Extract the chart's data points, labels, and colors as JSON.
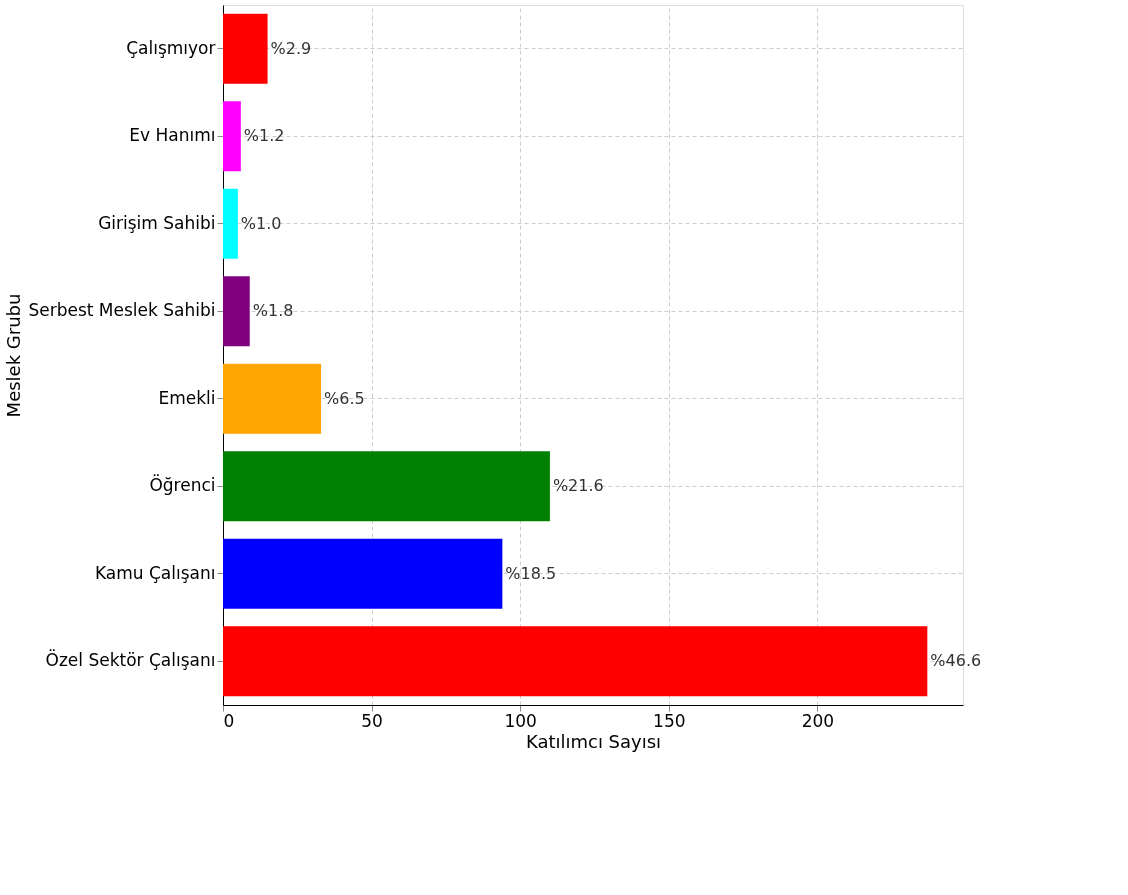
{
  "chart_data": {
    "type": "bar",
    "orientation": "horizontal",
    "xlabel": "Katılımcı Sayısı",
    "ylabel": "Meslek Grubu",
    "categories": [
      "Çalışmıyor",
      "Ev Hanımı",
      "Girişim Sahibi",
      "Serbest Meslek Sahibi",
      "Emekli",
      "Öğrenci",
      "Kamu Çalışanı",
      "Özel Sektör Çalışanı"
    ],
    "values": [
      15,
      6,
      5,
      9,
      33,
      110,
      94,
      237
    ],
    "colors": [
      "#ff0000",
      "#ff00ff",
      "#00ffff",
      "#800080",
      "#ffa500",
      "#008000",
      "#0000ff",
      "#ff0000"
    ],
    "annotations": [
      {
        "text": "%2.9",
        "x": 15,
        "y": "Çalışmıyor"
      },
      {
        "text": "%1.2",
        "x": 6,
        "y": "Ev Hanımı"
      },
      {
        "text": "%1.0",
        "x": 5,
        "y": "Girişim Sahibi"
      },
      {
        "text": "%1.8",
        "x": 9,
        "y": "Serbest Meslek Sahibi"
      },
      {
        "text": "%6.5",
        "x": 33,
        "y": "Emekli"
      },
      {
        "text": "%21.6",
        "x": 110,
        "y": "Öğrenci"
      },
      {
        "text": "%18.5",
        "x": 94,
        "y": "Kamu Çalışanı"
      },
      {
        "text": "%46.6",
        "x": 237,
        "y": "Özel Sektör Çalışanı"
      }
    ],
    "xlim": [
      0,
      249
    ],
    "xticks": [
      0,
      50,
      100,
      150,
      200
    ],
    "grid": true
  }
}
